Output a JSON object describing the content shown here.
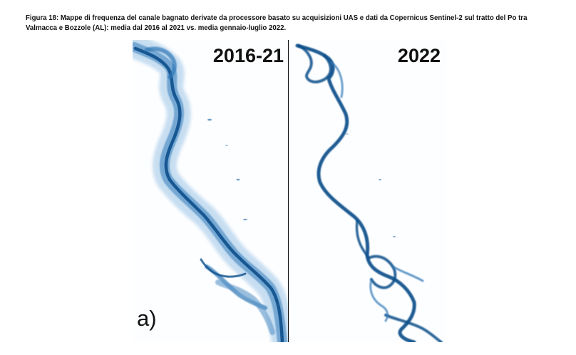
{
  "caption": "Figura 18: Mappe di frequenza del canale bagnato derivate da processore basato su acquisizioni UAS e dati da Copernicus Sentinel-2 sul tratto del Po tra Valmacca e Bozzole (AL): media dal 2016 al 2021 vs. media gennaio-luglio 2022.",
  "panels": {
    "left": {
      "label": "2016-21"
    },
    "right": {
      "label": "2022"
    }
  },
  "panel_letter": "a)",
  "colors": {
    "water_dark": "#0d4f8b",
    "water_mid": "#2f77b6",
    "water_light": "#9cc4e6",
    "background": "#ffffff"
  }
}
